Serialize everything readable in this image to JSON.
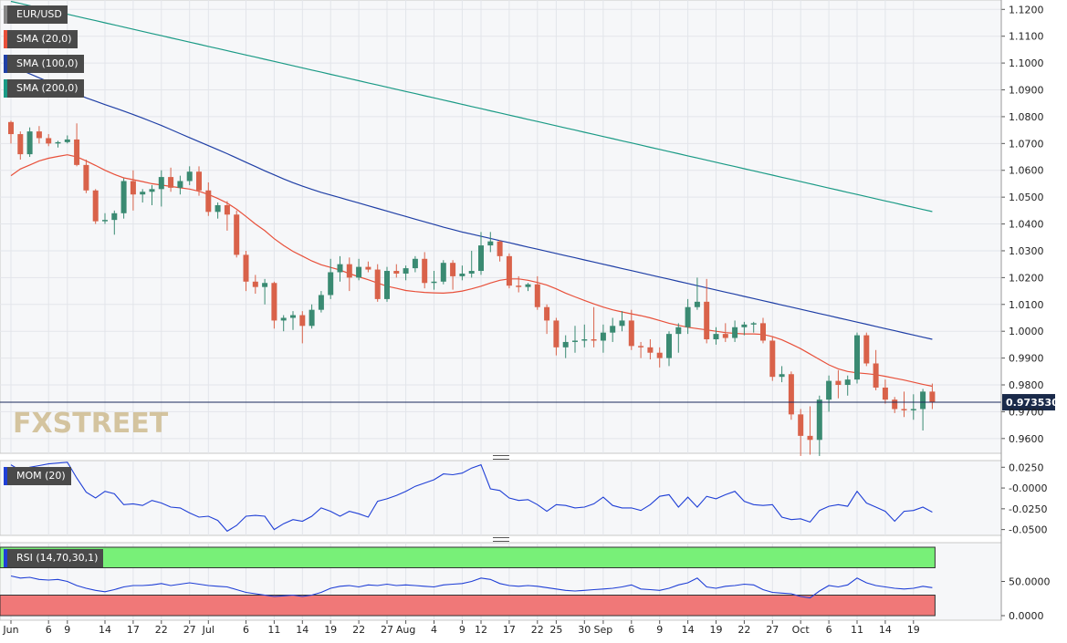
{
  "symbol": "EUR/USD",
  "colors": {
    "bull": "#3a8a72",
    "bear": "#d9624a",
    "sma20": "#e8503a",
    "sma100": "#1f3fa6",
    "sma200": "#1a9a85",
    "mom": "#1f3fd6",
    "rsi": "#1f3fd6",
    "rsi_overbought_band": "#78f078",
    "rsi_oversold_band": "#f07878",
    "last_price_line": "#1a2a5a"
  },
  "price_panel": {
    "y_ticks": [
      "1.1200",
      "1.1100",
      "1.1000",
      "1.0900",
      "1.0800",
      "1.0700",
      "1.0600",
      "1.0500",
      "1.0400",
      "1.0300",
      "1.0200",
      "1.0100",
      "1.0000",
      "0.9900",
      "0.9800",
      "0.9700",
      "0.9600"
    ],
    "last_price_label": "0.973530",
    "watermark": "FXSTREET"
  },
  "mom_panel": {
    "label": "MOM (20)",
    "y_ticks": [
      "0.0250",
      "-0.0000",
      "-0.0250",
      "-0.0500"
    ]
  },
  "rsi_panel": {
    "label": "RSI (14,70,30,1)",
    "y_ticks": [
      "50.0000",
      "0.0000"
    ]
  },
  "x_axis": {
    "labels": [
      "Jun",
      "6",
      "9",
      "14",
      "17",
      "22",
      "27",
      "Jul",
      "6",
      "11",
      "14",
      "19",
      "22",
      "27",
      "Aug",
      "4",
      "9",
      "12",
      "17",
      "22",
      "25",
      "30",
      "Sep",
      "6",
      "9",
      "14",
      "19",
      "22",
      "27",
      "Oct",
      "6",
      "11",
      "14",
      "19"
    ]
  },
  "chart_data": {
    "type": "candlestick",
    "title": "EUR/USD",
    "ylim": [
      0.9545,
      1.1235
    ],
    "candles": [
      {
        "o": 1.078,
        "h": 1.0785,
        "l": 1.07,
        "c": 1.0735
      },
      {
        "o": 1.0735,
        "h": 1.0745,
        "l": 1.064,
        "c": 1.066
      },
      {
        "o": 1.066,
        "h": 1.076,
        "l": 1.065,
        "c": 1.0745
      },
      {
        "o": 1.0745,
        "h": 1.0765,
        "l": 1.07,
        "c": 1.072
      },
      {
        "o": 1.072,
        "h": 1.0735,
        "l": 1.069,
        "c": 1.07
      },
      {
        "o": 1.07,
        "h": 1.071,
        "l": 1.0685,
        "c": 1.0705
      },
      {
        "o": 1.0705,
        "h": 1.073,
        "l": 1.07,
        "c": 1.0715
      },
      {
        "o": 1.0715,
        "h": 1.0775,
        "l": 1.0615,
        "c": 1.062
      },
      {
        "o": 1.062,
        "h": 1.064,
        "l": 1.0515,
        "c": 1.0525
      },
      {
        "o": 1.0525,
        "h": 1.053,
        "l": 1.04,
        "c": 1.041
      },
      {
        "o": 1.041,
        "h": 1.044,
        "l": 1.04,
        "c": 1.0415
      },
      {
        "o": 1.0415,
        "h": 1.045,
        "l": 1.036,
        "c": 1.044
      },
      {
        "o": 1.044,
        "h": 1.057,
        "l": 1.042,
        "c": 1.056
      },
      {
        "o": 1.056,
        "h": 1.06,
        "l": 1.045,
        "c": 1.051
      },
      {
        "o": 1.051,
        "h": 1.053,
        "l": 1.048,
        "c": 1.052
      },
      {
        "o": 1.052,
        "h": 1.0545,
        "l": 1.047,
        "c": 1.053
      },
      {
        "o": 1.053,
        "h": 1.06,
        "l": 1.0465,
        "c": 1.0575
      },
      {
        "o": 1.0575,
        "h": 1.061,
        "l": 1.052,
        "c": 1.0535
      },
      {
        "o": 1.0535,
        "h": 1.058,
        "l": 1.051,
        "c": 1.056
      },
      {
        "o": 1.056,
        "h": 1.0615,
        "l": 1.0545,
        "c": 1.0595
      },
      {
        "o": 1.0595,
        "h": 1.0615,
        "l": 1.0505,
        "c": 1.0525
      },
      {
        "o": 1.0525,
        "h": 1.0555,
        "l": 1.043,
        "c": 1.0445
      },
      {
        "o": 1.0445,
        "h": 1.048,
        "l": 1.042,
        "c": 1.047
      },
      {
        "o": 1.047,
        "h": 1.0485,
        "l": 1.0375,
        "c": 1.0435
      },
      {
        "o": 1.0435,
        "h": 1.045,
        "l": 1.0275,
        "c": 1.0285
      },
      {
        "o": 1.0285,
        "h": 1.03,
        "l": 1.015,
        "c": 1.0185
      },
      {
        "o": 1.0185,
        "h": 1.021,
        "l": 1.014,
        "c": 1.0165
      },
      {
        "o": 1.0165,
        "h": 1.0195,
        "l": 1.01,
        "c": 1.018
      },
      {
        "o": 1.018,
        "h": 1.0185,
        "l": 1.001,
        "c": 1.004
      },
      {
        "o": 1.004,
        "h": 1.006,
        "l": 1.0,
        "c": 1.005
      },
      {
        "o": 1.005,
        "h": 1.0075,
        "l": 1.0005,
        "c": 1.006
      },
      {
        "o": 1.006,
        "h": 1.0075,
        "l": 0.9955,
        "c": 1.002
      },
      {
        "o": 1.002,
        "h": 1.01,
        "l": 1.001,
        "c": 1.008
      },
      {
        "o": 1.008,
        "h": 1.015,
        "l": 1.007,
        "c": 1.0135
      },
      {
        "o": 1.0135,
        "h": 1.027,
        "l": 1.012,
        "c": 1.022
      },
      {
        "o": 1.022,
        "h": 1.028,
        "l": 1.0185,
        "c": 1.025
      },
      {
        "o": 1.025,
        "h": 1.0275,
        "l": 1.015,
        "c": 1.02
      },
      {
        "o": 1.02,
        "h": 1.027,
        "l": 1.019,
        "c": 1.024
      },
      {
        "o": 1.024,
        "h": 1.026,
        "l": 1.022,
        "c": 1.023
      },
      {
        "o": 1.023,
        "h": 1.025,
        "l": 1.011,
        "c": 1.012
      },
      {
        "o": 1.012,
        "h": 1.024,
        "l": 1.011,
        "c": 1.0225
      },
      {
        "o": 1.0225,
        "h": 1.025,
        "l": 1.02,
        "c": 1.0215
      },
      {
        "o": 1.0215,
        "h": 1.0245,
        "l": 1.019,
        "c": 1.0235
      },
      {
        "o": 1.0235,
        "h": 1.028,
        "l": 1.022,
        "c": 1.027
      },
      {
        "o": 1.027,
        "h": 1.0295,
        "l": 1.016,
        "c": 1.018
      },
      {
        "o": 1.018,
        "h": 1.0225,
        "l": 1.0155,
        "c": 1.0185
      },
      {
        "o": 1.0185,
        "h": 1.0265,
        "l": 1.0175,
        "c": 1.0255
      },
      {
        "o": 1.0255,
        "h": 1.0265,
        "l": 1.0155,
        "c": 1.0205
      },
      {
        "o": 1.0205,
        "h": 1.0245,
        "l": 1.019,
        "c": 1.0215
      },
      {
        "o": 1.0215,
        "h": 1.03,
        "l": 1.02,
        "c": 1.0225
      },
      {
        "o": 1.0225,
        "h": 1.037,
        "l": 1.021,
        "c": 1.032
      },
      {
        "o": 1.032,
        "h": 1.037,
        "l": 1.0295,
        "c": 1.0335
      },
      {
        "o": 1.0335,
        "h": 1.034,
        "l": 1.026,
        "c": 1.028
      },
      {
        "o": 1.028,
        "h": 1.029,
        "l": 1.016,
        "c": 1.017
      },
      {
        "o": 1.017,
        "h": 1.0205,
        "l": 1.0145,
        "c": 1.0165
      },
      {
        "o": 1.0165,
        "h": 1.018,
        "l": 1.015,
        "c": 1.0175
      },
      {
        "o": 1.0175,
        "h": 1.0205,
        "l": 1.008,
        "c": 1.009
      },
      {
        "o": 1.009,
        "h": 1.01,
        "l": 0.999,
        "c": 1.004
      },
      {
        "o": 1.004,
        "h": 1.005,
        "l": 0.991,
        "c": 0.994
      },
      {
        "o": 0.994,
        "h": 0.9985,
        "l": 0.99,
        "c": 0.996
      },
      {
        "o": 0.996,
        "h": 1.002,
        "l": 0.992,
        "c": 0.9965
      },
      {
        "o": 0.9965,
        "h": 1.0025,
        "l": 0.994,
        "c": 0.997
      },
      {
        "o": 0.997,
        "h": 1.009,
        "l": 0.994,
        "c": 0.9965
      },
      {
        "o": 0.9965,
        "h": 1.0025,
        "l": 0.992,
        "c": 0.9995
      },
      {
        "o": 0.9995,
        "h": 1.005,
        "l": 0.996,
        "c": 1.002
      },
      {
        "o": 1.002,
        "h": 1.0075,
        "l": 1.0,
        "c": 1.004
      },
      {
        "o": 1.004,
        "h": 1.008,
        "l": 0.993,
        "c": 0.9945
      },
      {
        "o": 0.9945,
        "h": 0.996,
        "l": 0.99,
        "c": 0.994
      },
      {
        "o": 0.994,
        "h": 0.997,
        "l": 0.9895,
        "c": 0.992
      },
      {
        "o": 0.992,
        "h": 0.994,
        "l": 0.9865,
        "c": 0.99
      },
      {
        "o": 0.99,
        "h": 1.0,
        "l": 0.987,
        "c": 0.999
      },
      {
        "o": 0.999,
        "h": 1.003,
        "l": 0.992,
        "c": 1.0015
      },
      {
        "o": 1.0015,
        "h": 1.012,
        "l": 0.999,
        "c": 1.009
      },
      {
        "o": 1.009,
        "h": 1.02,
        "l": 1.008,
        "c": 1.011
      },
      {
        "o": 1.011,
        "h": 1.0195,
        "l": 0.9955,
        "c": 0.997
      },
      {
        "o": 0.997,
        "h": 1.0015,
        "l": 0.995,
        "c": 0.999
      },
      {
        "o": 0.999,
        "h": 1.003,
        "l": 0.996,
        "c": 0.9975
      },
      {
        "o": 0.9975,
        "h": 1.004,
        "l": 0.996,
        "c": 1.0015
      },
      {
        "o": 1.0015,
        "h": 1.0035,
        "l": 0.9985,
        "c": 1.0025
      },
      {
        "o": 1.0025,
        "h": 1.0035,
        "l": 0.9995,
        "c": 1.003
      },
      {
        "o": 1.003,
        "h": 1.005,
        "l": 0.9955,
        "c": 0.9965
      },
      {
        "o": 0.9965,
        "h": 0.998,
        "l": 0.9815,
        "c": 0.983
      },
      {
        "o": 0.983,
        "h": 0.987,
        "l": 0.981,
        "c": 0.984
      },
      {
        "o": 0.984,
        "h": 0.985,
        "l": 0.967,
        "c": 0.969
      },
      {
        "o": 0.969,
        "h": 0.971,
        "l": 0.9535,
        "c": 0.961
      },
      {
        "o": 0.961,
        "h": 0.972,
        "l": 0.954,
        "c": 0.9595
      },
      {
        "o": 0.9595,
        "h": 0.976,
        "l": 0.9535,
        "c": 0.9745
      },
      {
        "o": 0.9745,
        "h": 0.9835,
        "l": 0.97,
        "c": 0.9815
      },
      {
        "o": 0.9815,
        "h": 0.9855,
        "l": 0.975,
        "c": 0.98
      },
      {
        "o": 0.98,
        "h": 0.9835,
        "l": 0.976,
        "c": 0.982
      },
      {
        "o": 0.982,
        "h": 0.9995,
        "l": 0.9805,
        "c": 0.9985
      },
      {
        "o": 0.9985,
        "h": 0.9995,
        "l": 0.987,
        "c": 0.988
      },
      {
        "o": 0.988,
        "h": 0.993,
        "l": 0.978,
        "c": 0.979
      },
      {
        "o": 0.979,
        "h": 0.982,
        "l": 0.973,
        "c": 0.9745
      },
      {
        "o": 0.9745,
        "h": 0.9755,
        "l": 0.9695,
        "c": 0.971
      },
      {
        "o": 0.971,
        "h": 0.9775,
        "l": 0.968,
        "c": 0.9705
      },
      {
        "o": 0.9705,
        "h": 0.9765,
        "l": 0.967,
        "c": 0.971
      },
      {
        "o": 0.971,
        "h": 0.9785,
        "l": 0.963,
        "c": 0.9775
      },
      {
        "o": 0.9775,
        "h": 0.9805,
        "l": 0.971,
        "c": 0.9735
      }
    ],
    "sma20": [
      1.058,
      1.0605,
      1.062,
      1.0635,
      1.0645,
      1.0652,
      1.0658,
      1.065,
      1.0635,
      1.0618,
      1.06,
      1.0585,
      1.0572,
      1.0565,
      1.0558,
      1.055,
      1.0545,
      1.054,
      1.0535,
      1.053,
      1.0522,
      1.051,
      1.0495,
      1.0478,
      1.0455,
      1.0428,
      1.04,
      1.0375,
      1.0345,
      1.032,
      1.0298,
      1.028,
      1.0262,
      1.0248,
      1.0238,
      1.0228,
      1.0215,
      1.0203,
      1.0192,
      1.018,
      1.0168,
      1.016,
      1.0152,
      1.0148,
      1.0145,
      1.0143,
      1.0142,
      1.0145,
      1.015,
      1.0158,
      1.0168,
      1.018,
      1.019,
      1.0195,
      1.0195,
      1.019,
      1.0182,
      1.0172,
      1.0158,
      1.0142,
      1.0128,
      1.0115,
      1.0102,
      1.009,
      1.008,
      1.0072,
      1.0065,
      1.0058,
      1.005,
      1.004,
      1.003,
      1.0022,
      1.0015,
      1.001,
      1.0005,
      1.0,
      0.9995,
      0.9992,
      0.999,
      0.999,
      0.9988,
      0.998,
      0.9968,
      0.9952,
      0.9935,
      0.9915,
      0.9895,
      0.9875,
      0.986,
      0.985,
      0.9845,
      0.9842,
      0.9838,
      0.9832,
      0.9825,
      0.9818,
      0.981,
      0.9802,
      0.9795
    ],
    "sma100": [
      1.099,
      1.0975,
      1.096,
      1.0945,
      1.093,
      1.0915,
      1.09,
      1.0885,
      1.087,
      1.0858,
      1.0845,
      1.0833,
      1.0821,
      1.0808,
      1.0795,
      1.0781,
      1.0767,
      1.0752,
      1.0737,
      1.0722,
      1.0707,
      1.0692,
      1.0677,
      1.0662,
      1.0646,
      1.063,
      1.0614,
      1.0598,
      1.0583,
      1.0568,
      1.0554,
      1.0541,
      1.0529,
      1.0518,
      1.0508,
      1.0498,
      1.0488,
      1.0478,
      1.0468,
      1.0458,
      1.0448,
      1.0438,
      1.0428,
      1.0418,
      1.0408,
      1.0398,
      1.0388,
      1.0379,
      1.037,
      1.0362,
      1.0354,
      1.0346,
      1.0338,
      1.033,
      1.0322,
      1.0314,
      1.0306,
      1.0298,
      1.029,
      1.0282,
      1.0274,
      1.0266,
      1.0258,
      1.025,
      1.0242,
      1.0234,
      1.0226,
      1.0218,
      1.021,
      1.0202,
      1.0194,
      1.0186,
      1.0178,
      1.017,
      1.0162,
      1.0154,
      1.0146,
      1.0138,
      1.013,
      1.0122,
      1.0114,
      1.0106,
      1.0098,
      1.009,
      1.0082,
      1.0074,
      1.0066,
      1.0058,
      1.005,
      1.0042,
      1.0034,
      1.0026,
      1.0018,
      1.001,
      1.0002,
      0.9994,
      0.9986,
      0.9978,
      0.997
    ],
    "sma200": [
      1.123,
      1.1222,
      1.1214,
      1.1206,
      1.1198,
      1.119,
      1.1182,
      1.1174,
      1.1166,
      1.1158,
      1.115,
      1.1142,
      1.1134,
      1.1126,
      1.1118,
      1.111,
      1.1102,
      1.1094,
      1.1086,
      1.1078,
      1.107,
      1.1062,
      1.1054,
      1.1046,
      1.1038,
      1.103,
      1.1022,
      1.1014,
      1.1006,
      1.0998,
      1.099,
      1.0982,
      1.0974,
      1.0966,
      1.0958,
      1.095,
      1.0942,
      1.0934,
      1.0926,
      1.0918,
      1.091,
      1.0902,
      1.0894,
      1.0886,
      1.0878,
      1.087,
      1.0862,
      1.0854,
      1.0846,
      1.0838,
      1.083,
      1.0822,
      1.0814,
      1.0806,
      1.0798,
      1.079,
      1.0782,
      1.0774,
      1.0766,
      1.0758,
      1.075,
      1.0742,
      1.0734,
      1.0726,
      1.0718,
      1.071,
      1.0702,
      1.0694,
      1.0686,
      1.0678,
      1.067,
      1.0662,
      1.0654,
      1.0646,
      1.0638,
      1.063,
      1.0622,
      1.0614,
      1.0606,
      1.0598,
      1.059,
      1.0582,
      1.0574,
      1.0566,
      1.0558,
      1.055,
      1.0542,
      1.0534,
      1.0526,
      1.0518,
      1.051,
      1.0502,
      1.0494,
      1.0486,
      1.0478,
      1.047,
      1.0462,
      1.0454,
      1.0446
    ],
    "momentum": {
      "name": "MOM (20)",
      "ylim": [
        -0.057,
        0.033
      ],
      "values": [
        0.028,
        0.021,
        0.025,
        0.027,
        0.029,
        0.03,
        0.031,
        0.012,
        -0.005,
        -0.012,
        -0.004,
        -0.007,
        -0.02,
        -0.019,
        -0.021,
        -0.015,
        -0.018,
        -0.023,
        -0.024,
        -0.03,
        -0.035,
        -0.034,
        -0.039,
        -0.052,
        -0.045,
        -0.034,
        -0.033,
        -0.034,
        -0.05,
        -0.043,
        -0.038,
        -0.04,
        -0.034,
        -0.024,
        -0.028,
        -0.034,
        -0.028,
        -0.031,
        -0.035,
        -0.016,
        -0.013,
        -0.009,
        -0.004,
        0.002,
        0.006,
        0.01,
        0.017,
        0.016,
        0.018,
        0.024,
        0.028,
        -0.001,
        -0.003,
        -0.012,
        -0.015,
        -0.014,
        -0.02,
        -0.028,
        -0.02,
        -0.021,
        -0.024,
        -0.023,
        -0.019,
        -0.011,
        -0.021,
        -0.024,
        -0.024,
        -0.027,
        -0.02,
        -0.01,
        -0.008,
        -0.023,
        -0.011,
        -0.023,
        -0.01,
        -0.013,
        -0.008,
        -0.004,
        -0.016,
        -0.02,
        -0.021,
        -0.02,
        -0.035,
        -0.038,
        -0.037,
        -0.041,
        -0.027,
        -0.022,
        -0.02,
        -0.022,
        -0.004,
        -0.018,
        -0.023,
        -0.028,
        -0.04,
        -0.028,
        -0.027,
        -0.023,
        -0.029
      ],
      "zero": 0.0
    },
    "rsi": {
      "name": "RSI (14,70,30,1)",
      "ylim": [
        0,
        100
      ],
      "overbought": 70,
      "oversold": 30,
      "values": [
        58,
        55,
        56,
        53,
        52,
        53,
        50,
        44,
        40,
        37,
        35,
        38,
        42,
        44,
        44,
        45,
        47,
        44,
        46,
        48,
        46,
        44,
        43,
        42,
        38,
        34,
        32,
        30,
        28,
        29,
        30,
        28,
        30,
        34,
        40,
        43,
        44,
        42,
        45,
        44,
        46,
        44,
        45,
        44,
        43,
        42,
        45,
        46,
        47,
        50,
        55,
        53,
        47,
        44,
        43,
        44,
        43,
        41,
        39,
        37,
        36,
        37,
        38,
        39,
        40,
        42,
        45,
        39,
        38,
        37,
        40,
        45,
        48,
        55,
        42,
        40,
        43,
        44,
        46,
        45,
        38,
        34,
        33,
        32,
        28,
        26,
        36,
        44,
        42,
        45,
        55,
        48,
        44,
        42,
        40,
        39,
        40,
        43,
        41
      ]
    }
  }
}
